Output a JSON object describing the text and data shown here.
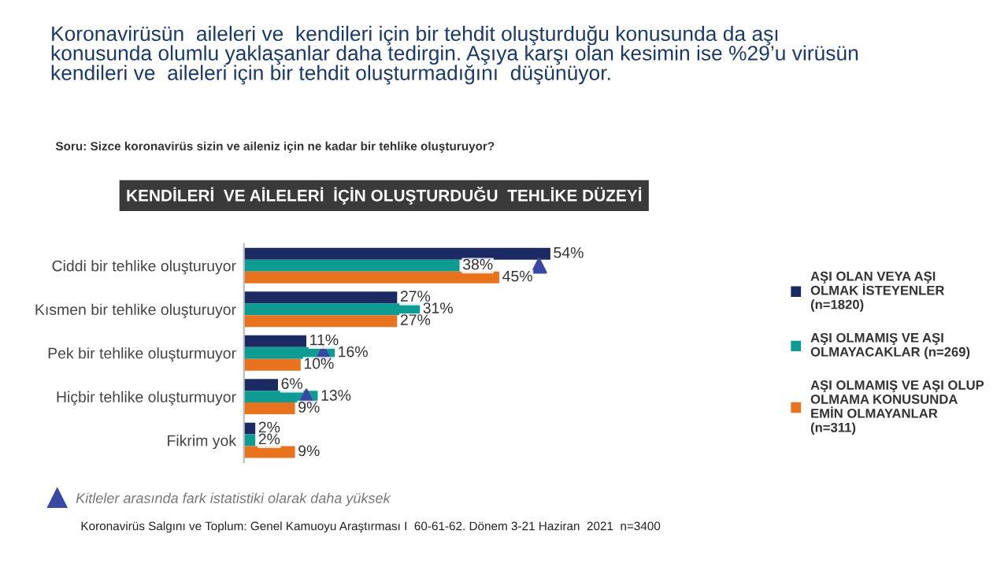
{
  "chart_data": {
    "type": "bar",
    "orientation": "horizontal",
    "title": "Koronavirüsün  aileleri ve  kendileri için bir tehdit oluşturduğu konusunda da aşı\nkonusunda olumlu yaklaşanlar daha tedirgin. Aşıya karşı olan kesimin ise %29’u virüsün\nkendileri ve  aileleri için bir tehdit oluşturmadığını  düşünüyor.",
    "subtitle": "Soru: Sizce koronavirüs sizin ve aileniz için ne kadar bir tehlike oluşturuyor?",
    "categories": [
      "Ciddi bir tehlike oluşturuyor",
      "Kısmen bir tehlike oluşturuyor",
      "Pek bir tehlike oluşturmuyor",
      "Hiçbir tehlike oluşturmuyor",
      "Fikrim yok"
    ],
    "series": [
      {
        "name": "AŞI OLAN VEYA AŞI\nOLMAK İSTEYENLER\n(n=1820)",
        "color": "#1b2a63",
        "values": [
          54,
          27,
          11,
          6,
          2
        ],
        "value_labels": [
          "54%",
          "27%",
          "11%",
          "6%",
          "2%"
        ]
      },
      {
        "name": "AŞI OLMAMIŞ VE AŞI\nOLMAYACAKLAR (n=269)",
        "color": "#0e9b91",
        "values": [
          38,
          31,
          16,
          13,
          2
        ],
        "value_labels": [
          "38%",
          "31%",
          "16%",
          "13%",
          "2%"
        ]
      },
      {
        "name": "AŞI OLMAMIŞ VE AŞI OLUP\nOLMAMA KONUSUNDA\nEMİN OLMAYANLAR\n(n=311)",
        "color": "#e8731f",
        "values": [
          45,
          27,
          10,
          9,
          9
        ],
        "value_labels": [
          "45%",
          "27%",
          "10%",
          "9%",
          "9%"
        ]
      },
      {
        "name": "Kitleler arasında fark istatistiki olarak daha yüksek",
        "type": "scatter",
        "marker": "triangle",
        "color": "#3a47a3",
        "values": [
          52,
          null,
          14,
          11,
          null
        ]
      }
    ],
    "legend": "right",
    "grid": false,
    "tick_labels": "y",
    "annotations": [
      "KENDİLERİ  VE AİLELERİ  İÇİN OLUŞTURDUĞU  TEHLİKE DÜZEYİ",
      "Koronavirüs Salgını ve Toplum: Genel Kamuoyu Araştırması I  60-61-62. Dönem 3-21 Haziran  2021  n=3400"
    ]
  }
}
